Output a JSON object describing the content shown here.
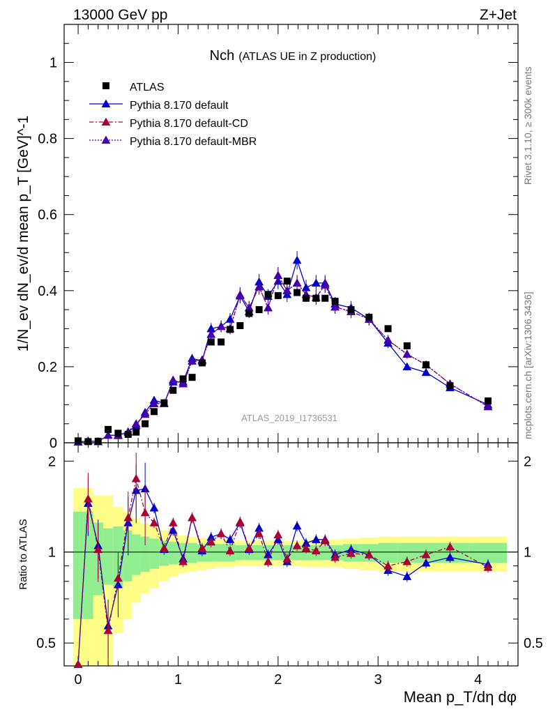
{
  "header": {
    "left": "13000 GeV pp",
    "right": "Z+Jet"
  },
  "plot_title": {
    "main": "Nch",
    "sub": "(ATLAS UE in Z production)"
  },
  "side_text": {
    "rivet": "Rivet 3.1.10, ≥ 300k events",
    "mcplots": "mcplots.cern.ch [arXiv:1306.3436]"
  },
  "watermark": "ATLAS_2019_I1736531",
  "colors": {
    "atlas": "#000000",
    "default": "#0000cc",
    "cd": "#aa0033",
    "mbr": "#4400aa",
    "band_inner": "#90ee90",
    "band_outer": "#ffff88"
  },
  "chart_data": [
    {
      "type": "scatter",
      "panel": "main",
      "ylabel": "1/N_ev dN_ev/d mean p_T [GeV]^-1",
      "xlabel": "",
      "xlim": [
        -0.14,
        4.4
      ],
      "ylim": [
        0,
        1.1
      ],
      "yticks": [
        "0",
        "0.2",
        "0.4",
        "0.6",
        "0.8",
        "1"
      ],
      "legend_position": "top-left",
      "x": [
        0.0,
        0.1,
        0.2,
        0.3,
        0.4,
        0.5,
        0.58,
        0.67,
        0.76,
        0.86,
        0.95,
        1.05,
        1.14,
        1.24,
        1.33,
        1.43,
        1.52,
        1.62,
        1.71,
        1.81,
        1.9,
        2.0,
        2.09,
        2.19,
        2.28,
        2.38,
        2.47,
        2.57,
        2.73,
        2.91,
        3.1,
        3.29,
        3.48,
        3.72,
        4.1
      ],
      "series": [
        {
          "name": "ATLAS",
          "marker": "square",
          "values": [
            0.005,
            0.003,
            0.004,
            0.035,
            0.025,
            0.022,
            0.028,
            0.05,
            0.082,
            0.105,
            0.138,
            0.168,
            0.172,
            0.21,
            0.265,
            0.265,
            0.298,
            0.308,
            0.34,
            0.35,
            0.39,
            0.387,
            0.425,
            0.395,
            0.38,
            0.38,
            0.38,
            0.372,
            0.35,
            0.33,
            0.3,
            0.255,
            0.205,
            0.15,
            0.11
          ]
        },
        {
          "name": "Pythia 8.170 default",
          "marker": "triangle",
          "line": "solid",
          "values": [
            0.002,
            0.005,
            0.003,
            0.02,
            0.019,
            0.028,
            0.045,
            0.08,
            0.112,
            0.104,
            0.16,
            0.16,
            0.222,
            0.215,
            0.3,
            0.306,
            0.325,
            0.386,
            0.345,
            0.423,
            0.385,
            0.425,
            0.39,
            0.48,
            0.408,
            0.42,
            0.42,
            0.365,
            0.355,
            0.325,
            0.262,
            0.2,
            0.185,
            0.145,
            0.1
          ]
        },
        {
          "name": "Pythia 8.170 default-CD",
          "marker": "triangle",
          "line": "dashdot",
          "values": [
            0.002,
            0.0045,
            0.003,
            0.02,
            0.02,
            0.029,
            0.05,
            0.075,
            0.103,
            0.103,
            0.165,
            0.155,
            0.215,
            0.218,
            0.285,
            0.306,
            0.3,
            0.389,
            0.355,
            0.41,
            0.355,
            0.44,
            0.4,
            0.42,
            0.39,
            0.382,
            0.415,
            0.357,
            0.345,
            0.325,
            0.27,
            0.233,
            0.205,
            0.155,
            0.095
          ]
        },
        {
          "name": "Pythia 8.170 default-MBR",
          "marker": "triangle",
          "line": "dotted",
          "values": [
            0.002,
            0.0045,
            0.003,
            0.02,
            0.02,
            0.029,
            0.05,
            0.075,
            0.103,
            0.103,
            0.165,
            0.155,
            0.215,
            0.218,
            0.285,
            0.306,
            0.3,
            0.389,
            0.355,
            0.41,
            0.355,
            0.44,
            0.4,
            0.42,
            0.39,
            0.382,
            0.415,
            0.357,
            0.345,
            0.325,
            0.27,
            0.233,
            0.205,
            0.155,
            0.095
          ]
        }
      ]
    },
    {
      "type": "line",
      "panel": "ratio",
      "ylabel": "Ratio to ATLAS",
      "xlabel": "Mean p_T/dη dφ",
      "xlim": [
        -0.14,
        4.4
      ],
      "ylim": [
        0.42,
        2.3
      ],
      "yscale": "log",
      "yticks": [
        "0.5",
        "1",
        "2"
      ],
      "xticks": [
        "0",
        "1",
        "2",
        "3",
        "4"
      ],
      "x": [
        0.0,
        0.1,
        0.2,
        0.3,
        0.4,
        0.5,
        0.58,
        0.67,
        0.76,
        0.86,
        0.95,
        1.05,
        1.14,
        1.24,
        1.33,
        1.43,
        1.52,
        1.62,
        1.71,
        1.81,
        1.9,
        2.0,
        2.09,
        2.19,
        2.28,
        2.38,
        2.47,
        2.57,
        2.73,
        2.91,
        3.1,
        3.29,
        3.48,
        3.72,
        4.1
      ],
      "bands": {
        "inner": [
          0.6,
          0.6,
          0.72,
          0.78,
          0.76,
          0.8,
          0.84,
          0.86,
          0.88,
          0.9,
          0.91,
          0.92,
          0.92,
          0.93,
          0.93,
          0.93,
          0.93,
          0.94,
          0.94,
          0.94,
          0.94,
          0.94,
          0.94,
          0.94,
          0.94,
          0.94,
          0.94,
          0.94,
          0.93,
          0.93,
          0.92,
          0.92,
          0.92,
          0.92,
          0.92
        ],
        "outer": [
          0.3,
          0.3,
          0.4,
          0.4,
          0.54,
          0.6,
          0.68,
          0.73,
          0.76,
          0.8,
          0.83,
          0.85,
          0.86,
          0.87,
          0.88,
          0.89,
          0.89,
          0.9,
          0.9,
          0.9,
          0.9,
          0.9,
          0.9,
          0.9,
          0.89,
          0.89,
          0.89,
          0.89,
          0.88,
          0.87,
          0.86,
          0.86,
          0.86,
          0.86,
          0.86
        ]
      },
      "series": [
        {
          "name": "Pythia 8.170 default",
          "values": [
            0.35,
            1.45,
            1.05,
            0.57,
            0.78,
            1.25,
            1.6,
            1.62,
            1.4,
            1.02,
            1.18,
            0.95,
            1.3,
            1.01,
            1.12,
            1.15,
            1.1,
            1.25,
            1.02,
            1.2,
            0.98,
            1.1,
            0.93,
            1.22,
            1.07,
            1.1,
            1.1,
            0.98,
            1.02,
            0.98,
            0.87,
            0.83,
            0.92,
            0.96,
            0.91
          ]
        },
        {
          "name": "Pythia 8.170 default-CD",
          "values": [
            0.35,
            1.5,
            1.02,
            0.55,
            0.82,
            1.3,
            1.75,
            1.35,
            1.25,
            1.03,
            1.25,
            0.93,
            1.3,
            1.03,
            1.08,
            1.15,
            1.01,
            1.26,
            1.03,
            1.15,
            0.93,
            1.14,
            0.95,
            1.05,
            1.03,
            1.01,
            1.09,
            0.96,
            0.99,
            0.98,
            0.9,
            0.93,
            0.98,
            1.04,
            0.89
          ]
        }
      ]
    }
  ]
}
